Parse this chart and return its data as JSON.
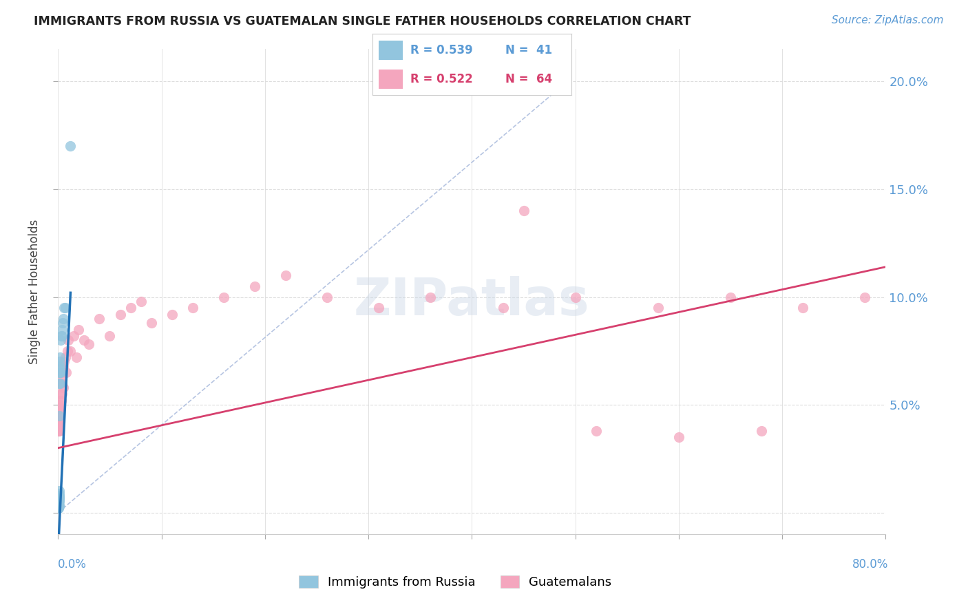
{
  "title": "IMMIGRANTS FROM RUSSIA VS GUATEMALAN SINGLE FATHER HOUSEHOLDS CORRELATION CHART",
  "source": "Source: ZipAtlas.com",
  "ylabel": "Single Father Households",
  "xlim": [
    0,
    0.8
  ],
  "ylim": [
    -0.01,
    0.215
  ],
  "yticks": [
    0.0,
    0.05,
    0.1,
    0.15,
    0.2
  ],
  "ytick_labels": [
    "",
    "5.0%",
    "10.0%",
    "15.0%",
    "20.0%"
  ],
  "xticks": [
    0.0,
    0.1,
    0.2,
    0.3,
    0.4,
    0.5,
    0.6,
    0.7,
    0.8
  ],
  "blue_color": "#92c5de",
  "pink_color": "#f4a6be",
  "blue_line_color": "#2171b5",
  "pink_line_color": "#d6406e",
  "watermark": "ZIPatlas",
  "russia_x": [
    0.0002,
    0.0003,
    0.0004,
    0.0004,
    0.0005,
    0.0005,
    0.0005,
    0.0006,
    0.0006,
    0.0006,
    0.0007,
    0.0007,
    0.0007,
    0.0008,
    0.0008,
    0.0008,
    0.0009,
    0.0009,
    0.001,
    0.001,
    0.001,
    0.0012,
    0.0012,
    0.0013,
    0.0013,
    0.0014,
    0.0015,
    0.0015,
    0.0017,
    0.0018,
    0.002,
    0.0022,
    0.0025,
    0.003,
    0.0035,
    0.004,
    0.0045,
    0.005,
    0.006,
    0.007,
    0.012
  ],
  "russia_y": [
    0.005,
    0.003,
    0.004,
    0.002,
    0.006,
    0.004,
    0.002,
    0.007,
    0.005,
    0.003,
    0.006,
    0.005,
    0.003,
    0.008,
    0.006,
    0.003,
    0.009,
    0.005,
    0.01,
    0.007,
    0.003,
    0.045,
    0.007,
    0.06,
    0.065,
    0.067,
    0.068,
    0.06,
    0.065,
    0.07,
    0.072,
    0.065,
    0.08,
    0.082,
    0.082,
    0.085,
    0.088,
    0.09,
    0.095,
    0.095,
    0.17
  ],
  "guatemala_x": [
    0.0002,
    0.0003,
    0.0004,
    0.0005,
    0.0005,
    0.0006,
    0.0006,
    0.0007,
    0.0007,
    0.0008,
    0.0008,
    0.0009,
    0.001,
    0.001,
    0.0012,
    0.0012,
    0.0013,
    0.0015,
    0.0015,
    0.002,
    0.002,
    0.0025,
    0.003,
    0.003,
    0.0035,
    0.004,
    0.004,
    0.005,
    0.005,
    0.006,
    0.007,
    0.008,
    0.009,
    0.01,
    0.012,
    0.015,
    0.018,
    0.02,
    0.025,
    0.03,
    0.04,
    0.05,
    0.06,
    0.07,
    0.08,
    0.09,
    0.11,
    0.13,
    0.16,
    0.19,
    0.22,
    0.26,
    0.31,
    0.36,
    0.43,
    0.5,
    0.58,
    0.65,
    0.72,
    0.78,
    0.45,
    0.52,
    0.6,
    0.68
  ],
  "guatemala_y": [
    0.038,
    0.04,
    0.042,
    0.04,
    0.038,
    0.042,
    0.038,
    0.045,
    0.04,
    0.042,
    0.038,
    0.045,
    0.048,
    0.04,
    0.05,
    0.042,
    0.048,
    0.052,
    0.042,
    0.055,
    0.048,
    0.06,
    0.062,
    0.052,
    0.065,
    0.06,
    0.055,
    0.068,
    0.058,
    0.07,
    0.072,
    0.065,
    0.075,
    0.08,
    0.075,
    0.082,
    0.072,
    0.085,
    0.08,
    0.078,
    0.09,
    0.082,
    0.092,
    0.095,
    0.098,
    0.088,
    0.092,
    0.095,
    0.1,
    0.105,
    0.11,
    0.1,
    0.095,
    0.1,
    0.095,
    0.1,
    0.095,
    0.1,
    0.095,
    0.1,
    0.14,
    0.038,
    0.035,
    0.038
  ]
}
